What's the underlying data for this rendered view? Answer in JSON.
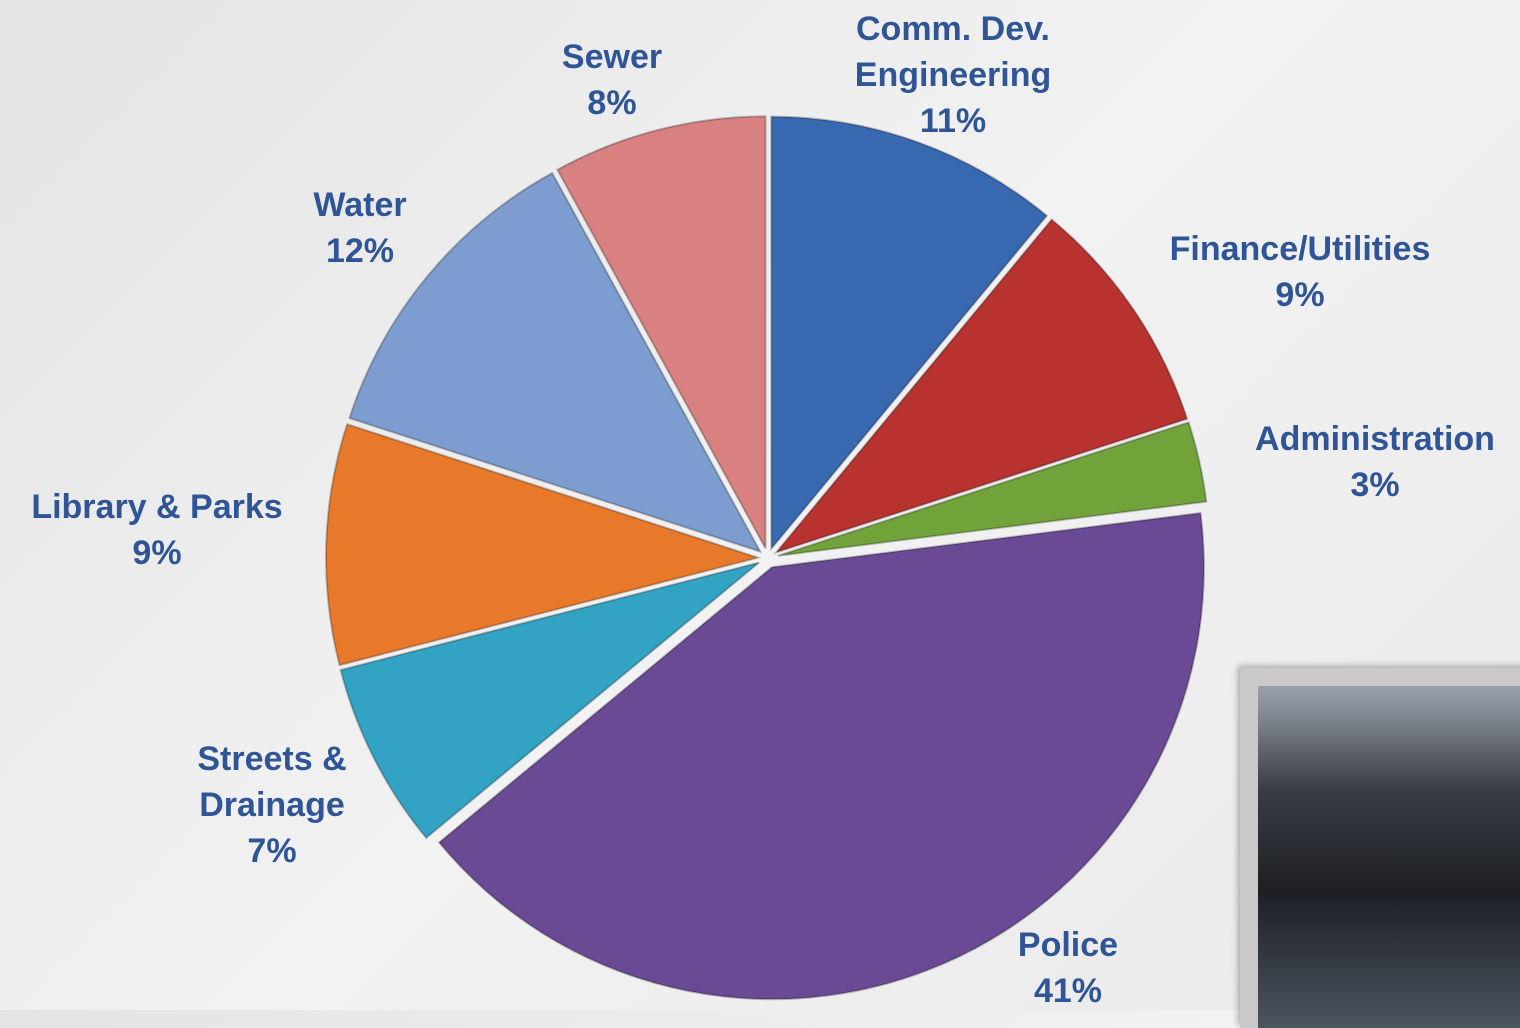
{
  "chart_data": {
    "type": "pie",
    "categories": [
      "Comm. Dev. Engineering",
      "Finance/Utilities",
      "Administration",
      "Police",
      "Streets & Drainage",
      "Library & Parks",
      "Water",
      "Sewer"
    ],
    "values": [
      11,
      9,
      3,
      41,
      7,
      9,
      12,
      8
    ],
    "value_labels": [
      "11%",
      "9%",
      "3%",
      "41%",
      "7%",
      "9%",
      "12%",
      "8%"
    ],
    "colors": [
      "#3768b0",
      "#b8322f",
      "#72a33a",
      "#6a4a94",
      "#33a3c4",
      "#e8792a",
      "#7d9dd0",
      "#d98080"
    ]
  }
}
